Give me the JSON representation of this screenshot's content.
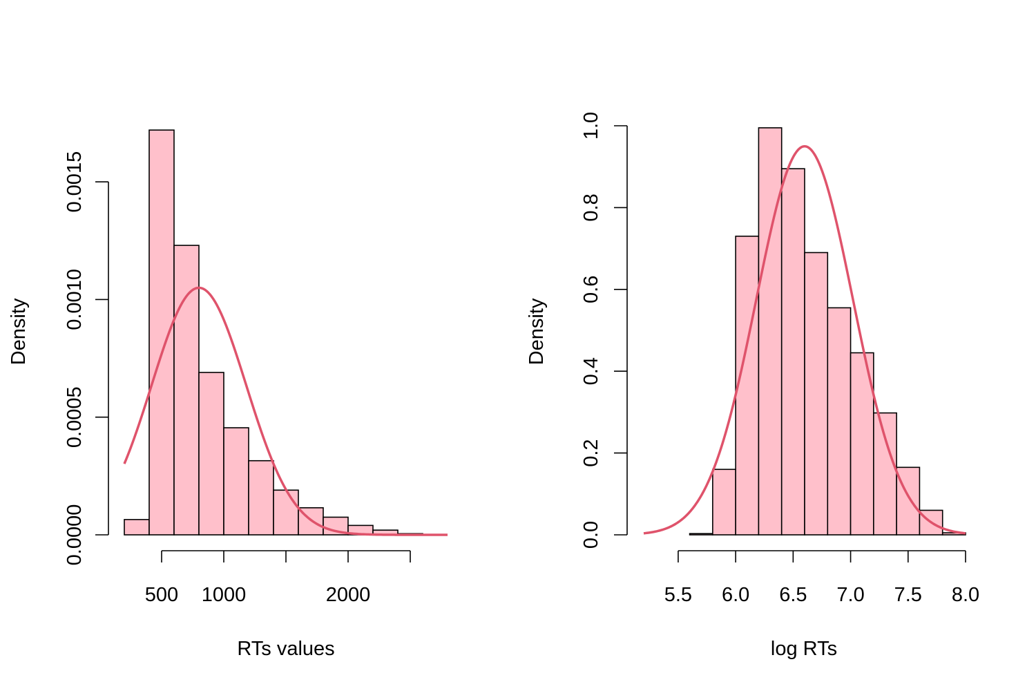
{
  "colors": {
    "bar_fill": "#ffc0cb",
    "bar_stroke": "#000000",
    "curve": "#df536b",
    "axis": "#000000"
  },
  "chart_data": [
    {
      "type": "bar",
      "subtype": "histogram-with-normal-density",
      "title": "",
      "xlabel": "RTs values",
      "ylabel": "Density",
      "xlim": [
        200,
        2800
      ],
      "ylim": [
        0,
        0.00175
      ],
      "xticks": [
        500,
        1000,
        1500,
        2000,
        2500
      ],
      "xtick_labels": [
        "500",
        "1000",
        "",
        "2000",
        ""
      ],
      "yticks": [
        0,
        0.0005,
        0.001,
        0.0015
      ],
      "ytick_labels": [
        "0.0000",
        "0.0005",
        "0.0010",
        "0.0015"
      ],
      "bin_edges": [
        200,
        400,
        600,
        800,
        1000,
        1200,
        1400,
        1600,
        1800,
        2000,
        2200,
        2400,
        2600,
        2800
      ],
      "values": [
        6.5e-05,
        0.00172,
        0.00123,
        0.00069,
        0.000455,
        0.000315,
        0.00019,
        0.000115,
        7.5e-05,
        4e-05,
        2e-05,
        5e-06,
        0.0
      ],
      "density_curve": {
        "distribution": "normal",
        "mean": 800,
        "sd": 380,
        "x_range": [
          200,
          2800
        ]
      },
      "grid": false,
      "legend": "none"
    },
    {
      "type": "bar",
      "subtype": "histogram-with-normal-density",
      "title": "",
      "xlabel": "log RTs",
      "ylabel": "Density",
      "xlim": [
        5.2,
        8.0
      ],
      "ylim": [
        0,
        1.0
      ],
      "xticks": [
        5.5,
        6.0,
        6.5,
        7.0,
        7.5,
        8.0
      ],
      "xtick_labels": [
        "5.5",
        "6.0",
        "6.5",
        "7.0",
        "7.5",
        "8.0"
      ],
      "yticks": [
        0,
        0.2,
        0.4,
        0.6,
        0.8,
        1.0
      ],
      "ytick_labels": [
        "0.0",
        "0.2",
        "0.4",
        "0.6",
        "0.8",
        "1.0"
      ],
      "bin_edges": [
        5.6,
        5.8,
        6.0,
        6.2,
        6.4,
        6.6,
        6.8,
        7.0,
        7.2,
        7.4,
        7.6,
        7.8,
        8.0
      ],
      "values": [
        0.003,
        0.16,
        0.73,
        0.995,
        0.895,
        0.69,
        0.555,
        0.445,
        0.298,
        0.165,
        0.06,
        0.005
      ],
      "density_curve": {
        "distribution": "normal",
        "mean": 6.6,
        "sd": 0.42,
        "x_range": [
          5.2,
          8.0
        ]
      },
      "grid": false,
      "legend": "none"
    }
  ]
}
